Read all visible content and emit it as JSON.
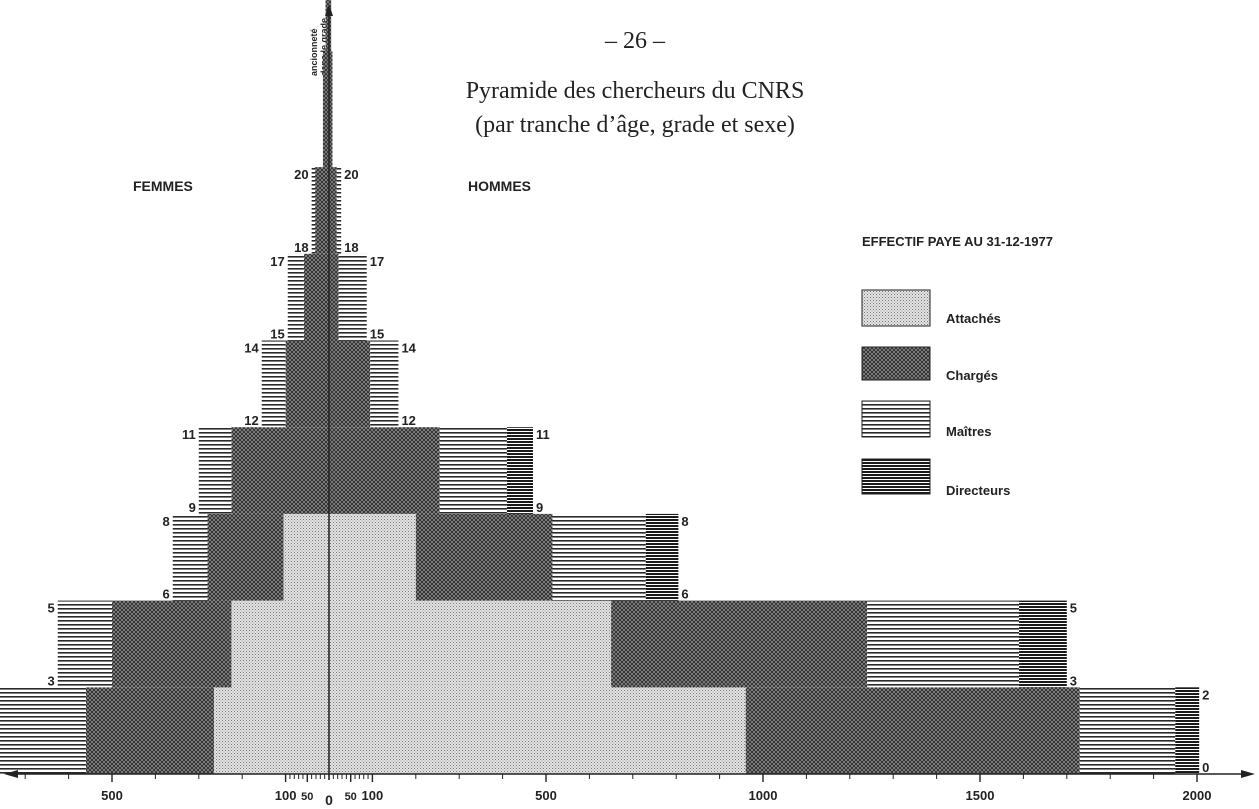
{
  "page": {
    "number": "– 26 –"
  },
  "chart_data": {
    "type": "bar",
    "subtype": "population-pyramid",
    "title": "Pyramide des chercheurs du CNRS",
    "subtitle": "(par tranche d’âge, grade et sexe)",
    "left_label": "FEMMES",
    "right_label": "HOMMES",
    "y_axis_label_line1": "ancionneté",
    "y_axis_label_line2": "dans le grade",
    "legend_title": "EFFECTIF PAYE AU 31-12-1977",
    "legend_position": "right",
    "x_tick_labels_left": [
      "500",
      "100",
      "50"
    ],
    "x_tick_labels_right": [
      "50",
      "100",
      "500",
      "1000",
      "1500",
      "2000"
    ],
    "x_zero_label": "0",
    "colors": {
      "ink": "#222222",
      "attaches": "#d9d9d9",
      "charges": "#7d7d7d",
      "maitres": "#ffffff",
      "directeurs": "#ffffff"
    },
    "series": [
      {
        "name": "Attachés",
        "pattern": "dots"
      },
      {
        "name": "Chargés",
        "pattern": "crosshatch"
      },
      {
        "name": "Maîtres",
        "pattern": "lines"
      },
      {
        "name": "Directeurs",
        "pattern": "dense-lines"
      }
    ],
    "bands": [
      {
        "from": 0,
        "to": 2,
        "femmes": [
          265,
          295,
          300,
          0
        ],
        "hommes": [
          960,
          770,
          220,
          55
        ]
      },
      {
        "from": 3,
        "to": 5,
        "femmes": [
          225,
          275,
          125,
          0
        ],
        "hommes": [
          650,
          590,
          350,
          110
        ]
      },
      {
        "from": 6,
        "to": 8,
        "femmes": [
          105,
          175,
          80,
          0
        ],
        "hommes": [
          200,
          315,
          215,
          75
        ]
      },
      {
        "from": 9,
        "to": 11,
        "femmes": [
          0,
          225,
          75,
          0
        ],
        "hommes": [
          0,
          255,
          155,
          60
        ]
      },
      {
        "from": 12,
        "to": 14,
        "femmes": [
          0,
          100,
          55,
          0
        ],
        "hommes": [
          0,
          95,
          65,
          0
        ]
      },
      {
        "from": 15,
        "to": 17,
        "femmes": [
          0,
          58,
          37,
          0
        ],
        "hommes": [
          0,
          22,
          65,
          0
        ]
      },
      {
        "from": 18,
        "to": 20,
        "femmes": [
          0,
          32,
          8,
          0
        ],
        "hommes": [
          0,
          18,
          10,
          0
        ]
      },
      {
        "from": 21,
        "to": 24,
        "femmes": [
          0,
          14,
          0,
          0
        ],
        "hommes": [
          0,
          8,
          0,
          0
        ]
      },
      {
        "from": 25,
        "to": 29,
        "femmes": [
          0,
          8,
          0,
          0
        ],
        "hommes": [
          0,
          5,
          0,
          0
        ]
      }
    ],
    "band_labels": [
      {
        "y": 0,
        "left": "0",
        "right": "0"
      },
      {
        "y": 2,
        "left": "2",
        "right": "2"
      },
      {
        "y": 3,
        "left": "3",
        "right": "3"
      },
      {
        "y": 5,
        "left": "5",
        "right": "5"
      },
      {
        "y": 6,
        "left": "6",
        "right": "6"
      },
      {
        "y": 8,
        "left": "8",
        "right": "8"
      },
      {
        "y": 9,
        "left": "9",
        "right": "9"
      },
      {
        "y": 11,
        "left": "11",
        "right": "11"
      },
      {
        "y": 12,
        "left": "12",
        "right": "12"
      },
      {
        "y": 14,
        "left": "14",
        "right": "14"
      },
      {
        "y": 15,
        "left": "15",
        "right": "15"
      },
      {
        "y": 17,
        "left": "17",
        "right": "17"
      },
      {
        "y": 18,
        "left": "18",
        "right": "18"
      },
      {
        "y": 20,
        "left": "20",
        "right": "20"
      }
    ]
  }
}
